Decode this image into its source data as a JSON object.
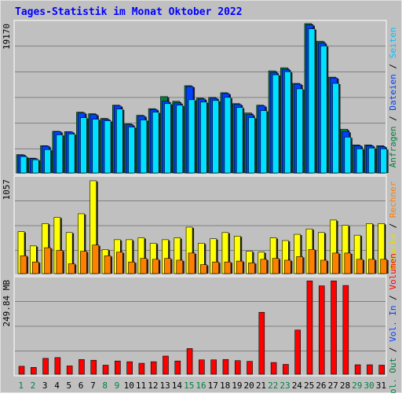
{
  "title": "Tages-Statistik im Monat Oktober 2022",
  "colors": {
    "background": "#c0c0c0",
    "frame": "#e0e0e0",
    "title": "#0000ff",
    "grid": "#808080",
    "anfragen": "#008040",
    "dateien": "#0040ff",
    "seiten": "#00e0ff",
    "besuche": "#ffff00",
    "rechner": "#ff8000",
    "volumen": "#ff0000",
    "vol_in": "#0040ff",
    "vol_out": "#008040",
    "weekday_label": "#000000",
    "weekend_label": "#008040"
  },
  "right_labels": {
    "top": [
      {
        "text": "Anfragen",
        "color": "#008040"
      },
      {
        "text": "Dateien",
        "color": "#0040ff"
      },
      {
        "text": "Seiten",
        "color": "#00c0ff"
      }
    ],
    "middle": [
      {
        "text": "Besuche",
        "color": "#e0e000"
      },
      {
        "text": "Rechner",
        "color": "#ff8000"
      }
    ],
    "bottom": [
      {
        "text": "Vol. Out",
        "color": "#008040"
      },
      {
        "text": "Vol. In",
        "color": "#0040ff"
      },
      {
        "text": "Volumen",
        "color": "#ff0000"
      }
    ],
    "separator": " / "
  },
  "chart_data": [
    {
      "type": "bar",
      "panel": "top",
      "max_label": "19170",
      "ylim": [
        0,
        19170
      ],
      "categories": [
        "1",
        "2",
        "3",
        "4",
        "5",
        "6",
        "7",
        "8",
        "9",
        "10",
        "11",
        "12",
        "13",
        "14",
        "15",
        "16",
        "17",
        "18",
        "19",
        "20",
        "21",
        "22",
        "23",
        "24",
        "25",
        "26",
        "27",
        "28",
        "29",
        "30",
        "31"
      ],
      "weekend": [
        true,
        true,
        false,
        false,
        false,
        false,
        false,
        true,
        true,
        false,
        false,
        false,
        false,
        false,
        true,
        true,
        false,
        false,
        false,
        false,
        false,
        true,
        true,
        false,
        false,
        false,
        false,
        false,
        true,
        true,
        false
      ],
      "series": [
        {
          "name": "Anfragen",
          "values": [
            2350,
            1900,
            3500,
            5350,
            5300,
            7800,
            7600,
            7000,
            8700,
            6300,
            7400,
            8250,
            9800,
            9200,
            11200,
            9600,
            9700,
            10300,
            8900,
            7700,
            8700,
            13100,
            13500,
            11500,
            19170,
            16900,
            12300,
            5600,
            3600,
            3600,
            3500
          ]
        },
        {
          "name": "Dateien",
          "values": [
            2300,
            1850,
            3450,
            5300,
            5250,
            7700,
            7500,
            6900,
            8600,
            6200,
            7300,
            8150,
            9200,
            9000,
            11100,
            9500,
            9600,
            10200,
            8800,
            7500,
            8600,
            12900,
            13300,
            11400,
            19000,
            16700,
            12200,
            5300,
            3500,
            3500,
            3400
          ]
        },
        {
          "name": "Seiten",
          "values": [
            2100,
            1700,
            3000,
            4900,
            5000,
            7100,
            6900,
            6700,
            8200,
            5900,
            6800,
            7800,
            8900,
            8700,
            9400,
            9100,
            9300,
            9700,
            8400,
            7100,
            8000,
            12600,
            13000,
            10800,
            18500,
            16300,
            11500,
            4600,
            3100,
            3200,
            3100
          ]
        }
      ]
    },
    {
      "type": "bar",
      "panel": "middle",
      "max_label": "1057",
      "ylim": [
        0,
        1057
      ],
      "categories": [
        "1",
        "2",
        "3",
        "4",
        "5",
        "6",
        "7",
        "8",
        "9",
        "10",
        "11",
        "12",
        "13",
        "14",
        "15",
        "16",
        "17",
        "18",
        "19",
        "20",
        "21",
        "22",
        "23",
        "24",
        "25",
        "26",
        "27",
        "28",
        "29",
        "30",
        "31"
      ],
      "series": [
        {
          "name": "Besuche",
          "values": [
            470,
            310,
            560,
            630,
            460,
            670,
            1040,
            270,
            380,
            380,
            400,
            340,
            380,
            400,
            520,
            340,
            390,
            460,
            420,
            250,
            240,
            400,
            370,
            440,
            500,
            460,
            600,
            540,
            430,
            560,
            560
          ]
        },
        {
          "name": "Rechner",
          "values": [
            200,
            130,
            290,
            260,
            110,
            250,
            320,
            200,
            240,
            130,
            170,
            160,
            170,
            150,
            230,
            100,
            130,
            130,
            140,
            120,
            160,
            170,
            150,
            190,
            270,
            150,
            230,
            230,
            160,
            160,
            160
          ]
        }
      ]
    },
    {
      "type": "bar",
      "panel": "bottom",
      "max_label": "249.84 MB",
      "ylim": [
        0,
        249.84
      ],
      "categories": [
        "1",
        "2",
        "3",
        "4",
        "5",
        "6",
        "7",
        "8",
        "9",
        "10",
        "11",
        "12",
        "13",
        "14",
        "15",
        "16",
        "17",
        "18",
        "19",
        "20",
        "21",
        "22",
        "23",
        "24",
        "25",
        "26",
        "27",
        "28",
        "29",
        "30",
        "31"
      ],
      "series": [
        {
          "name": "Volumen",
          "values": [
            21,
            18,
            42,
            44,
            22,
            39,
            37,
            24,
            35,
            33,
            29,
            33,
            48,
            35,
            68,
            38,
            38,
            39,
            36,
            34,
            164,
            31,
            26,
            117,
            247,
            234,
            247,
            235,
            25,
            25,
            24
          ]
        }
      ]
    }
  ]
}
